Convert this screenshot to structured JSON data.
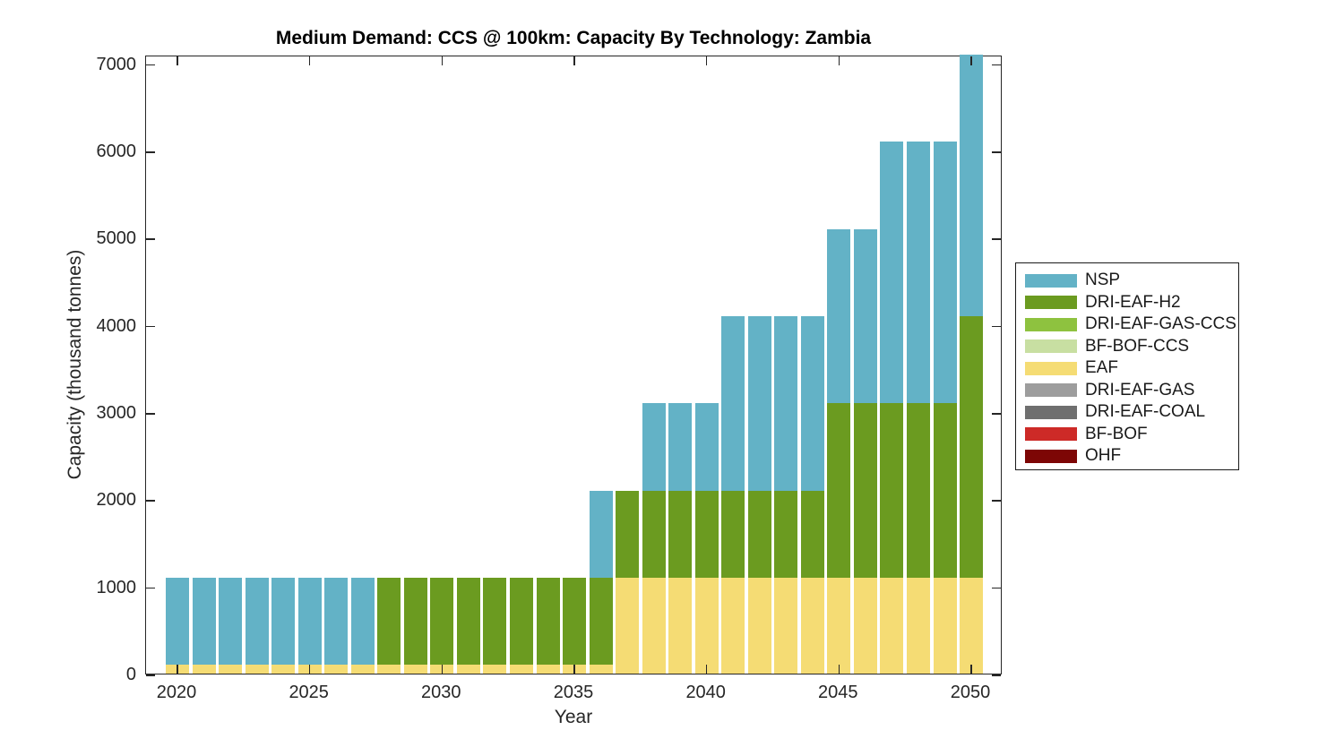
{
  "chart_data": {
    "type": "bar",
    "stacked": true,
    "title": "Medium Demand: CCS @ 100km: Capacity By Technology: Zambia",
    "xlabel": "Year",
    "ylabel": "Capacity (thousand tonnes)",
    "x": [
      2020,
      2021,
      2022,
      2023,
      2024,
      2025,
      2026,
      2027,
      2028,
      2029,
      2030,
      2031,
      2032,
      2033,
      2034,
      2035,
      2036,
      2037,
      2038,
      2039,
      2040,
      2041,
      2042,
      2043,
      2044,
      2045,
      2046,
      2047,
      2048,
      2049,
      2050
    ],
    "xticks": [
      2020,
      2025,
      2030,
      2035,
      2040,
      2045,
      2050
    ],
    "yticks": [
      0,
      1000,
      2000,
      3000,
      4000,
      5000,
      6000,
      7000
    ],
    "ylim": [
      0,
      7100
    ],
    "grid": false,
    "legend_position": "right-outside",
    "axis_color": "#262626",
    "legend_order": [
      "NSP",
      "DRI-EAF-H2",
      "DRI-EAF-GAS-CCS",
      "BF-BOF-CCS",
      "EAF",
      "DRI-EAF-GAS",
      "DRI-EAF-COAL",
      "BF-BOF",
      "OHF"
    ],
    "stack_order_bottom_to_top": [
      "OHF",
      "BF-BOF",
      "DRI-EAF-COAL",
      "DRI-EAF-GAS",
      "EAF",
      "BF-BOF-CCS",
      "DRI-EAF-GAS-CCS",
      "DRI-EAF-H2",
      "NSP"
    ],
    "series": [
      {
        "name": "NSP",
        "color": "#63b2c6",
        "values": [
          1000,
          1000,
          1000,
          1000,
          1000,
          1000,
          1000,
          1000,
          0,
          0,
          0,
          0,
          0,
          0,
          0,
          0,
          1000,
          0,
          1000,
          1000,
          1000,
          2000,
          2000,
          2000,
          2000,
          2000,
          2000,
          3000,
          3000,
          3000,
          3000
        ]
      },
      {
        "name": "DRI-EAF-H2",
        "color": "#6b9b20",
        "values": [
          0,
          0,
          0,
          0,
          0,
          0,
          0,
          0,
          1000,
          1000,
          1000,
          1000,
          1000,
          1000,
          1000,
          1000,
          1000,
          1000,
          1000,
          1000,
          1000,
          1000,
          1000,
          1000,
          1000,
          2000,
          2000,
          2000,
          2000,
          2000,
          3000
        ]
      },
      {
        "name": "DRI-EAF-GAS-CCS",
        "color": "#8ec23f",
        "values": [
          0,
          0,
          0,
          0,
          0,
          0,
          0,
          0,
          0,
          0,
          0,
          0,
          0,
          0,
          0,
          0,
          0,
          0,
          0,
          0,
          0,
          0,
          0,
          0,
          0,
          0,
          0,
          0,
          0,
          0,
          0
        ]
      },
      {
        "name": "BF-BOF-CCS",
        "color": "#c8dfa2",
        "values": [
          0,
          0,
          0,
          0,
          0,
          0,
          0,
          0,
          0,
          0,
          0,
          0,
          0,
          0,
          0,
          0,
          0,
          0,
          0,
          0,
          0,
          0,
          0,
          0,
          0,
          0,
          0,
          0,
          0,
          0,
          0
        ]
      },
      {
        "name": "EAF",
        "color": "#f5dc74",
        "values": [
          100,
          100,
          100,
          100,
          100,
          100,
          100,
          100,
          100,
          100,
          100,
          100,
          100,
          100,
          100,
          100,
          100,
          1100,
          1100,
          1100,
          1100,
          1100,
          1100,
          1100,
          1100,
          1100,
          1100,
          1100,
          1100,
          1100,
          1100
        ]
      },
      {
        "name": "DRI-EAF-GAS",
        "color": "#9d9d9d",
        "values": [
          0,
          0,
          0,
          0,
          0,
          0,
          0,
          0,
          0,
          0,
          0,
          0,
          0,
          0,
          0,
          0,
          0,
          0,
          0,
          0,
          0,
          0,
          0,
          0,
          0,
          0,
          0,
          0,
          0,
          0,
          0
        ]
      },
      {
        "name": "DRI-EAF-COAL",
        "color": "#6f6f6f",
        "values": [
          0,
          0,
          0,
          0,
          0,
          0,
          0,
          0,
          0,
          0,
          0,
          0,
          0,
          0,
          0,
          0,
          0,
          0,
          0,
          0,
          0,
          0,
          0,
          0,
          0,
          0,
          0,
          0,
          0,
          0,
          0
        ]
      },
      {
        "name": "BF-BOF",
        "color": "#cd2a27",
        "values": [
          0,
          0,
          0,
          0,
          0,
          0,
          0,
          0,
          0,
          0,
          0,
          0,
          0,
          0,
          0,
          0,
          0,
          0,
          0,
          0,
          0,
          0,
          0,
          0,
          0,
          0,
          0,
          0,
          0,
          0,
          0
        ]
      },
      {
        "name": "OHF",
        "color": "#7d0605",
        "values": [
          0,
          0,
          0,
          0,
          0,
          0,
          0,
          0,
          0,
          0,
          0,
          0,
          0,
          0,
          0,
          0,
          0,
          0,
          0,
          0,
          0,
          0,
          0,
          0,
          0,
          0,
          0,
          0,
          0,
          0,
          0
        ]
      }
    ]
  }
}
